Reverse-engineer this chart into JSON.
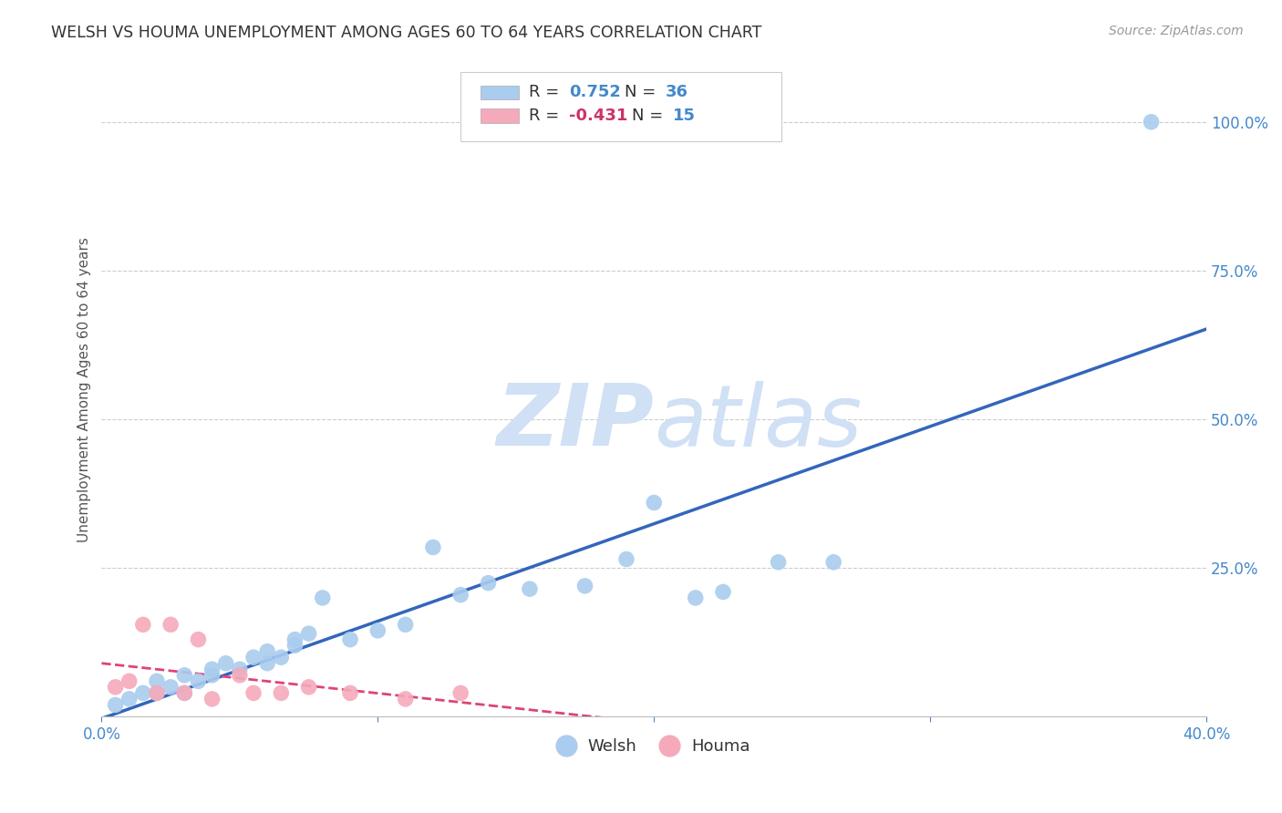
{
  "title": "WELSH VS HOUMA UNEMPLOYMENT AMONG AGES 60 TO 64 YEARS CORRELATION CHART",
  "source": "Source: ZipAtlas.com",
  "ylabel": "Unemployment Among Ages 60 to 64 years",
  "xlim": [
    0.0,
    0.4
  ],
  "ylim": [
    0.0,
    1.1
  ],
  "xticks": [
    0.0,
    0.1,
    0.2,
    0.3,
    0.4
  ],
  "xticklabels": [
    "0.0%",
    "",
    "",
    "",
    "40.0%"
  ],
  "ytick_positions": [
    0.25,
    0.5,
    0.75,
    1.0
  ],
  "yticklabels": [
    "25.0%",
    "50.0%",
    "75.0%",
    "100.0%"
  ],
  "welsh_r": 0.752,
  "welsh_n": 36,
  "houma_r": -0.431,
  "houma_n": 15,
  "welsh_color": "#aaccee",
  "houma_color": "#f5aabb",
  "welsh_line_color": "#3366bb",
  "houma_line_color": "#dd4477",
  "watermark_zip": "ZIP",
  "watermark_atlas": "atlas",
  "watermark_color": "#d0e0f5",
  "background_color": "#ffffff",
  "grid_color": "#cccccc",
  "title_color": "#333333",
  "axis_label_color": "#555555",
  "tick_color": "#4488cc",
  "welsh_x": [
    0.005,
    0.01,
    0.015,
    0.02,
    0.02,
    0.025,
    0.03,
    0.03,
    0.035,
    0.04,
    0.04,
    0.045,
    0.05,
    0.055,
    0.06,
    0.06,
    0.065,
    0.07,
    0.07,
    0.075,
    0.08,
    0.09,
    0.1,
    0.11,
    0.12,
    0.13,
    0.14,
    0.155,
    0.175,
    0.19,
    0.2,
    0.215,
    0.225,
    0.245,
    0.265,
    0.38
  ],
  "welsh_y": [
    0.02,
    0.03,
    0.04,
    0.04,
    0.06,
    0.05,
    0.04,
    0.07,
    0.06,
    0.07,
    0.08,
    0.09,
    0.08,
    0.1,
    0.09,
    0.11,
    0.1,
    0.12,
    0.13,
    0.14,
    0.2,
    0.13,
    0.145,
    0.155,
    0.285,
    0.205,
    0.225,
    0.215,
    0.22,
    0.265,
    0.36,
    0.2,
    0.21,
    0.26,
    0.26,
    1.0
  ],
  "houma_x": [
    0.005,
    0.01,
    0.015,
    0.02,
    0.025,
    0.03,
    0.035,
    0.04,
    0.05,
    0.055,
    0.065,
    0.075,
    0.09,
    0.11,
    0.13
  ],
  "houma_y": [
    0.05,
    0.06,
    0.155,
    0.04,
    0.155,
    0.04,
    0.13,
    0.03,
    0.07,
    0.04,
    0.04,
    0.05,
    0.04,
    0.03,
    0.04
  ],
  "legend_welsh_label": "Welsh",
  "legend_houma_label": "Houma",
  "marker_size": 160
}
